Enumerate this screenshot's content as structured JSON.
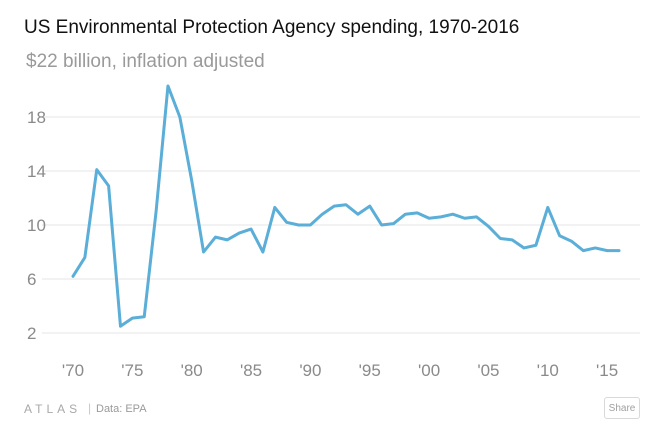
{
  "header": {
    "title": "US Environmental Protection Agency spending, 1970-2016",
    "subtitle": "$22 billion, inflation adjusted"
  },
  "footer": {
    "logo": "ATLAS",
    "separator": "|",
    "source": "Data: EPA",
    "share_label": "Share"
  },
  "chart_data": {
    "type": "line",
    "title": "US Environmental Protection Agency spending, 1970-2016",
    "subtitle": "$22 billion, inflation adjusted",
    "xlabel": "",
    "ylabel": "",
    "xlim": [
      1970,
      2016
    ],
    "ylim": [
      0,
      22
    ],
    "yticks": [
      2,
      6,
      10,
      14,
      18
    ],
    "xticks": [
      1970,
      1975,
      1980,
      1985,
      1990,
      1995,
      2000,
      2005,
      2010,
      2015
    ],
    "xtick_labels": [
      "'70",
      "'75",
      "'80",
      "'85",
      "'90",
      "'95",
      "'00",
      "'05",
      "'10",
      "'15"
    ],
    "grid": "horizontal",
    "series_color": "#5aaed7",
    "series": [
      {
        "name": "",
        "x": [
          1970,
          1971,
          1972,
          1973,
          1974,
          1975,
          1976,
          1977,
          1978,
          1979,
          1980,
          1981,
          1982,
          1983,
          1984,
          1985,
          1986,
          1987,
          1988,
          1989,
          1990,
          1991,
          1992,
          1993,
          1994,
          1995,
          1996,
          1997,
          1998,
          1999,
          2000,
          2001,
          2002,
          2003,
          2004,
          2005,
          2006,
          2007,
          2008,
          2009,
          2010,
          2011,
          2012,
          2013,
          2014,
          2015,
          2016
        ],
        "values": [
          6.2,
          7.6,
          14.1,
          12.9,
          2.5,
          3.1,
          3.2,
          11.0,
          20.3,
          18.0,
          13.3,
          8.0,
          9.1,
          8.9,
          9.4,
          9.7,
          8.0,
          11.3,
          10.2,
          10.0,
          10.0,
          10.8,
          11.4,
          11.5,
          10.8,
          11.4,
          10.0,
          10.1,
          10.8,
          10.9,
          10.5,
          10.6,
          10.8,
          10.5,
          10.6,
          9.9,
          9.0,
          8.9,
          8.3,
          8.5,
          11.3,
          9.2,
          8.8,
          8.1,
          8.3,
          8.1,
          8.1
        ]
      }
    ]
  }
}
